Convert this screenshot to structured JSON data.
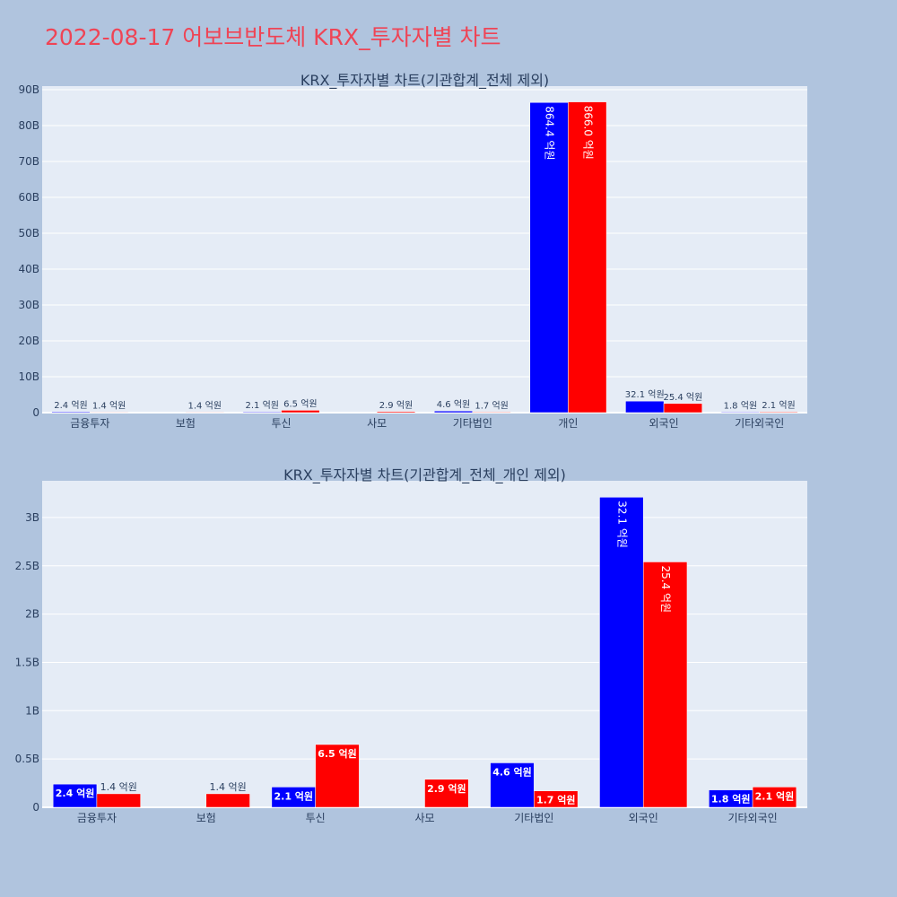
{
  "page": {
    "title": "2022-08-17 어보브반도체 KRX_투자자별 차트",
    "title_color": "#ef4455",
    "background": "#b0c4de",
    "plot_background": "#e5ecf6"
  },
  "chart_data": [
    {
      "type": "bar",
      "title": "KRX_투자자별 차트(기관합계_전체 제외)",
      "categories": [
        "금융투자",
        "보험",
        "투신",
        "사모",
        "기타법인",
        "개인",
        "외국인",
        "기타외국인"
      ],
      "series": [
        {
          "color": "#0000ff",
          "values": [
            0.24,
            0,
            0.21,
            0,
            0.46,
            86.44,
            3.21,
            0.18
          ],
          "labels": [
            "2.4 억원",
            "",
            "2.1 억원",
            "",
            "4.6 억원",
            "864.4 억원",
            "32.1 억원",
            "1.8 억원"
          ]
        },
        {
          "color": "#ff0000",
          "values": [
            0.14,
            0.14,
            0.65,
            0.29,
            0.17,
            86.6,
            2.54,
            0.21
          ],
          "labels": [
            "1.4 억원",
            "1.4 억원",
            "6.5 억원",
            "2.9 억원",
            "1.7 억원",
            "866.0 억원",
            "25.4 억원",
            "2.1 억원"
          ]
        }
      ],
      "ylim": [
        0,
        91
      ],
      "yticks": [
        0,
        10,
        20,
        30,
        40,
        50,
        60,
        70,
        80,
        90
      ],
      "ytick_labels": [
        "0",
        "10B",
        "20B",
        "30B",
        "40B",
        "50B",
        "60B",
        "70B",
        "80B",
        "90B"
      ],
      "grid": true,
      "legend": "none"
    },
    {
      "type": "bar",
      "title": "KRX_투자자별 차트(기관합계_전체_개인 제외)",
      "categories": [
        "금융투자",
        "보험",
        "투신",
        "사모",
        "기타법인",
        "외국인",
        "기타외국인"
      ],
      "series": [
        {
          "color": "#0000ff",
          "values": [
            0.24,
            0,
            0.21,
            0,
            0.46,
            3.21,
            0.18
          ],
          "labels": [
            "2.4 억원",
            "",
            "2.1 억원",
            "",
            "4.6 억원",
            "32.1 억원",
            "1.8 억원"
          ]
        },
        {
          "color": "#ff0000",
          "values": [
            0.14,
            0.14,
            0.65,
            0.29,
            0.17,
            2.54,
            0.21
          ],
          "labels": [
            "1.4 억원",
            "1.4 억원",
            "6.5 억원",
            "2.9 억원",
            "1.7 억원",
            "25.4 억원",
            "2.1 억원"
          ]
        }
      ],
      "ylim": [
        0,
        3.38
      ],
      "yticks": [
        0,
        0.5,
        1,
        1.5,
        2,
        2.5,
        3
      ],
      "ytick_labels": [
        "0",
        "0.5B",
        "1B",
        "1.5B",
        "2B",
        "2.5B",
        "3B"
      ],
      "grid": true,
      "legend": "none"
    }
  ]
}
